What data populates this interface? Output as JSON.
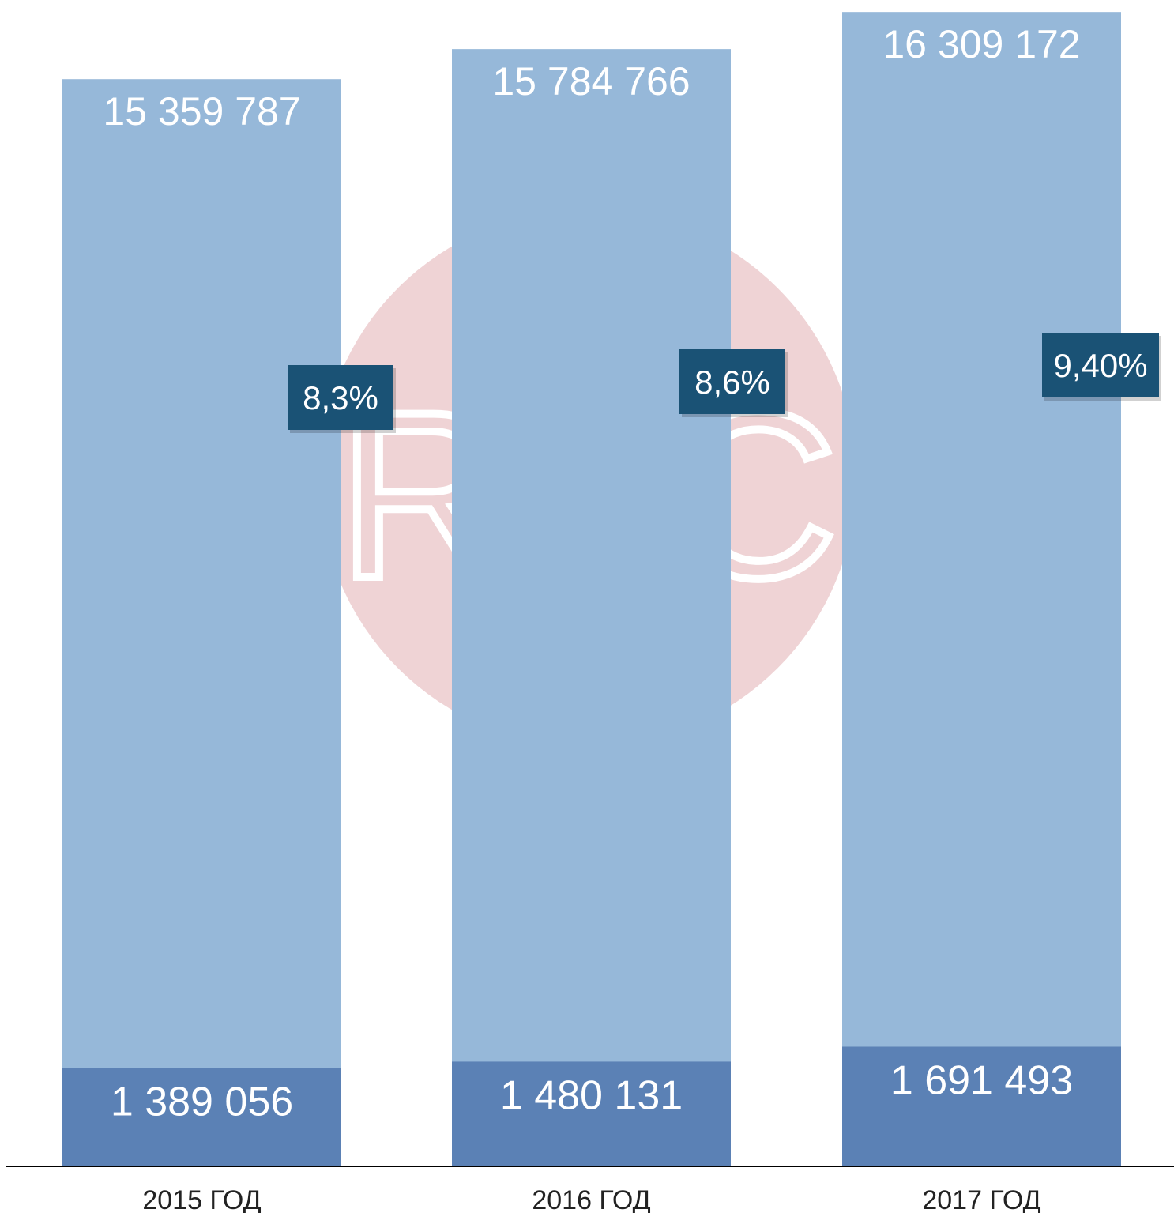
{
  "chart_data": {
    "type": "bar",
    "stacked": true,
    "categories": [
      "2015 ГОД",
      "2016 ГОД",
      "2017 ГОД"
    ],
    "series": [
      {
        "values": [
          1389056,
          1480131,
          1691493
        ]
      },
      {
        "values": [
          15359787,
          15784766,
          16309172
        ]
      }
    ],
    "bar_labels_bottom": [
      "1 389 056",
      "1 480 131",
      "1 691 493"
    ],
    "bar_labels_top": [
      "15 359 787",
      "15 784 766",
      "16 309 172"
    ],
    "percent_labels": [
      "8,3%",
      "8,6%",
      "9,40%"
    ],
    "title": "",
    "xlabel": "",
    "ylabel": "",
    "grid": false,
    "colors": {
      "total_bar": "#96b8d9",
      "lower_segment": "#5b81b5",
      "percent_badge": "#1a5275",
      "label_text": "#ffffff",
      "axis_line": "#000000",
      "category_text": "#222222",
      "watermark_circle": "#efd3d5"
    },
    "watermark": {
      "text": "RBC"
    }
  }
}
